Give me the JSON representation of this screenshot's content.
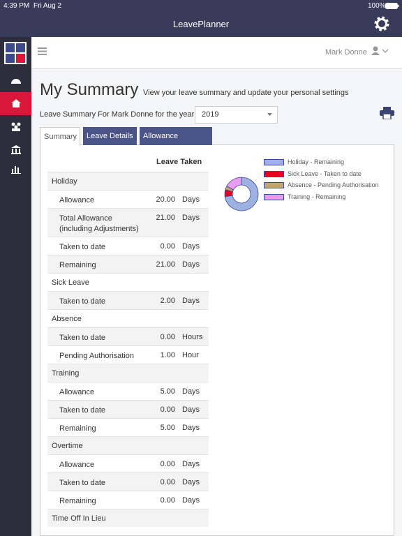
{
  "status": {
    "time": "4:39 PM",
    "date": "Fri Aug 2",
    "battery": "100%"
  },
  "app_title": "LeavePlanner",
  "user": "Mark Donne",
  "heading": "My Summary",
  "subheading": "View your leave summary and update your personal settings",
  "year_label": "Leave Summary For Mark Donne for the year",
  "year": "2019",
  "tabs": [
    "Summary",
    "Leave Details",
    "Allowance Changes"
  ],
  "table": {
    "header": "Leave Taken",
    "sections": [
      {
        "title": "Holiday",
        "items": [
          {
            "label": "Allowance",
            "value": "20.00",
            "unit": "Days"
          },
          {
            "label": "Total Allowance (including Adjustments)",
            "value": "21.00",
            "unit": "Days"
          },
          {
            "label": "Taken to date",
            "value": "0.00",
            "unit": "Days"
          },
          {
            "label": "Remaining",
            "value": "21.00",
            "unit": "Days"
          }
        ]
      },
      {
        "title": "Sick Leave",
        "items": [
          {
            "label": "Taken to date",
            "value": "2.00",
            "unit": "Days"
          }
        ]
      },
      {
        "title": "Absence",
        "items": [
          {
            "label": "Taken to date",
            "value": "0.00",
            "unit": "Hours"
          },
          {
            "label": "Pending Authorisation",
            "value": "1.00",
            "unit": "Hour"
          }
        ]
      },
      {
        "title": "Training",
        "items": [
          {
            "label": "Allowance",
            "value": "5.00",
            "unit": "Days"
          },
          {
            "label": "Taken to date",
            "value": "0.00",
            "unit": "Days"
          },
          {
            "label": "Remaining",
            "value": "5.00",
            "unit": "Days"
          }
        ]
      },
      {
        "title": "Overtime",
        "items": [
          {
            "label": "Allowance",
            "value": "0.00",
            "unit": "Days"
          },
          {
            "label": "Taken to date",
            "value": "0.00",
            "unit": "Days"
          },
          {
            "label": "Remaining",
            "value": "0.00",
            "unit": "Days"
          }
        ]
      },
      {
        "title": "Time Off In Lieu",
        "items": []
      }
    ]
  },
  "chart_data": {
    "type": "donut",
    "series": [
      {
        "name": "Holiday - Remaining",
        "color": "#9fb1e0",
        "value": 21
      },
      {
        "name": "Sick Leave - Taken to date",
        "color": "#e8001c",
        "value": 2
      },
      {
        "name": "Absence - Pending Authorisation",
        "color": "#c2a46c",
        "value": 1
      },
      {
        "name": "Training - Remaining",
        "color": "#e99cf0",
        "value": 5
      }
    ]
  }
}
